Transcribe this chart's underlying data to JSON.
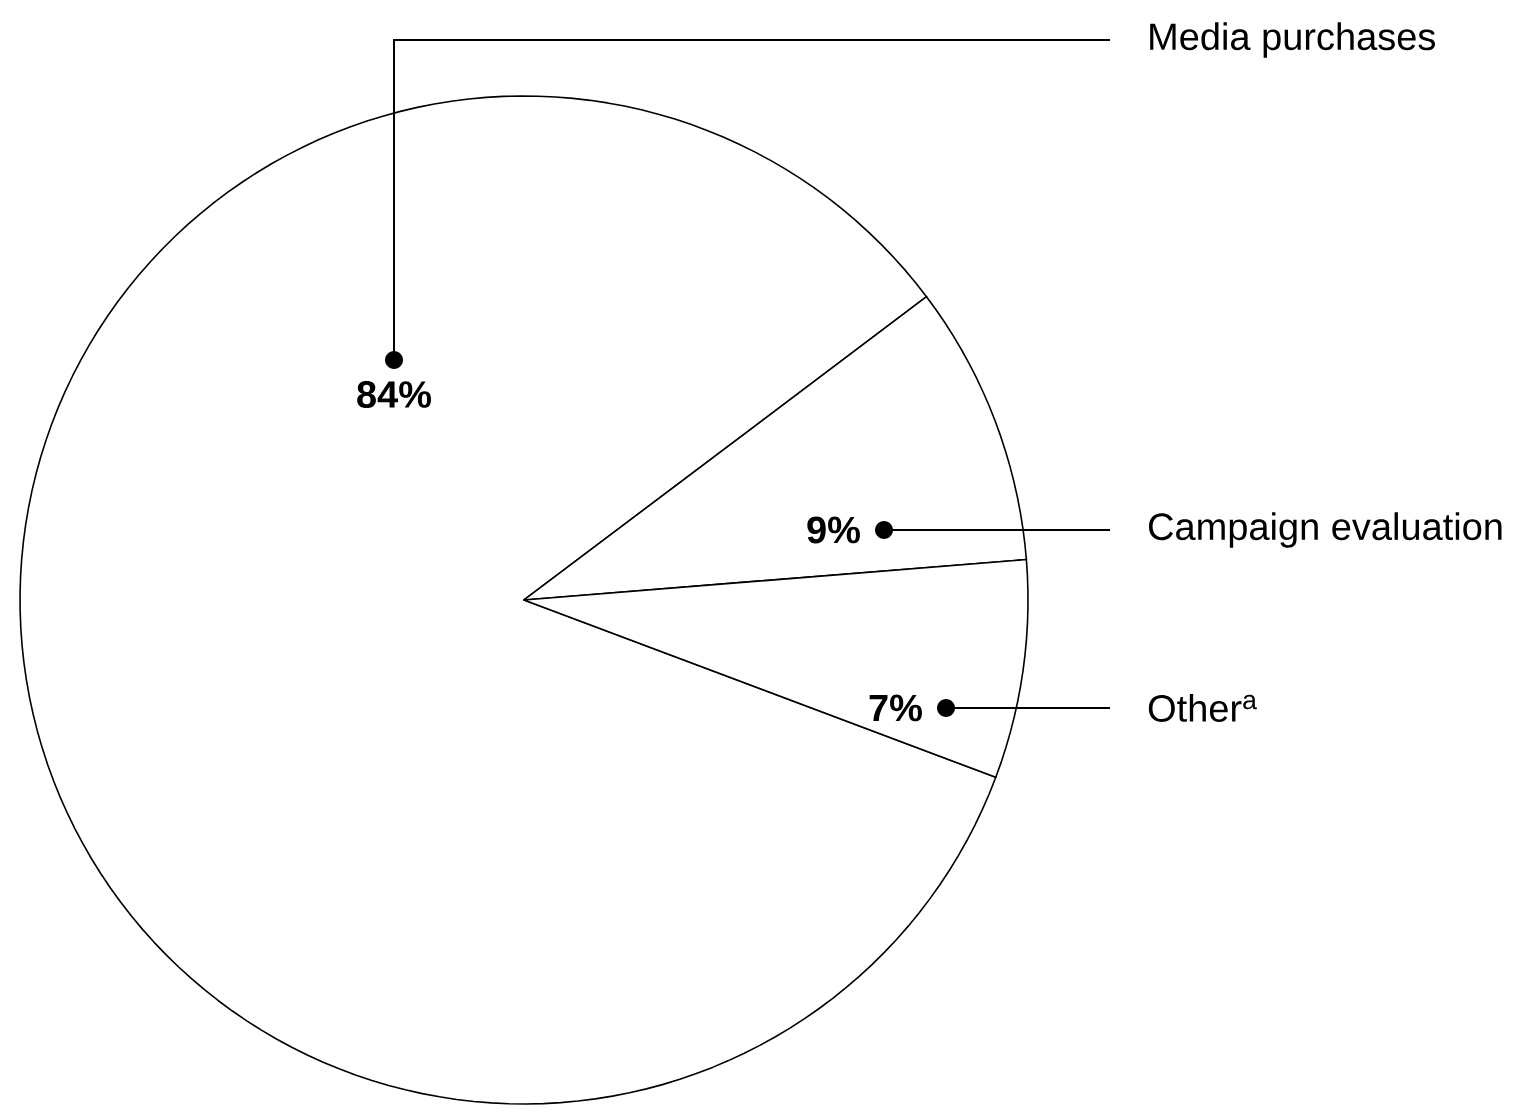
{
  "chart_data": {
    "type": "pie",
    "categories": [
      "Media purchases",
      "Campaign evaluation",
      "Other$^{a}$"
    ],
    "values": [
      84,
      9,
      7
    ],
    "value_labels": [
      "84%",
      "9%",
      "7%"
    ],
    "colors": [
      "#ffffff",
      "#ffffff",
      "#ffffff"
    ]
  }
}
